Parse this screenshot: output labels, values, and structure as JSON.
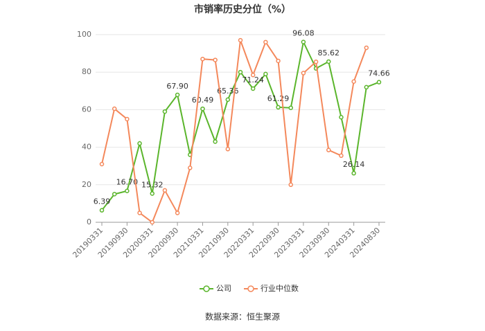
{
  "chart_data": {
    "type": "line",
    "title": "市销率历史分位（%）",
    "categories": [
      "20190331",
      null,
      "20190930",
      null,
      "20200331",
      null,
      "20200930",
      null,
      "20210331",
      null,
      "20210930",
      null,
      "20220331",
      null,
      "20220930",
      null,
      "20230331",
      null,
      "20230930",
      null,
      "20240331",
      null,
      "20240830"
    ],
    "series": [
      {
        "name": "公司",
        "color": "#5ab52b",
        "values": [
          6.39,
          15,
          16.7,
          42,
          15.32,
          59,
          67.9,
          36,
          60.49,
          43,
          65.36,
          80,
          71.24,
          79,
          61.29,
          61,
          96.08,
          82,
          85.62,
          56,
          26.14,
          72,
          74.66
        ],
        "value_labels": [
          "6.39",
          null,
          "16.70",
          null,
          "15.32",
          null,
          "67.90",
          null,
          "60.49",
          null,
          "65.36",
          null,
          "71.24",
          null,
          "61.29",
          null,
          "96.08",
          null,
          "85.62",
          null,
          "26.14",
          null,
          "74.66"
        ]
      },
      {
        "name": "行业中位数",
        "color": "#f4885b",
        "values": [
          31,
          60.5,
          55,
          5,
          0,
          17,
          5,
          29,
          87,
          86.5,
          39,
          97,
          78.5,
          96,
          86,
          20,
          79.5,
          85.5,
          38.5,
          35.5,
          75,
          93,
          null
        ]
      }
    ],
    "ylim": [
      0,
      100
    ],
    "yticks": [
      0,
      20,
      40,
      60,
      80,
      100
    ],
    "grid": true,
    "legend": "bottom",
    "source": "数据来源：恒生聚源"
  }
}
